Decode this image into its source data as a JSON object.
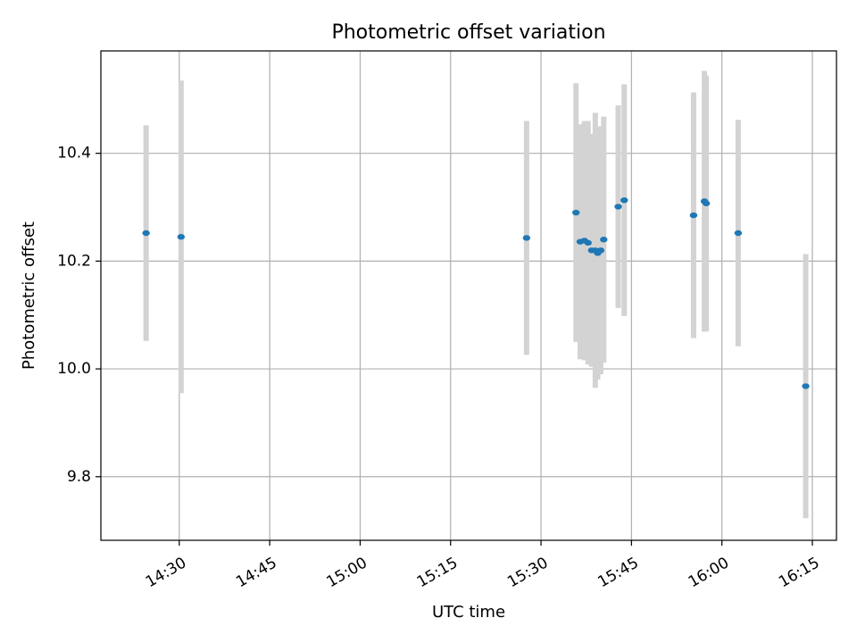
{
  "chart_data": {
    "type": "scatter",
    "title": "Photometric offset variation",
    "xlabel": "UTC time",
    "ylabel": "Photometric offset",
    "xlim": [
      "14:17",
      "16:19"
    ],
    "ylim": [
      9.682,
      10.59
    ],
    "x_ticks": [
      "14:30",
      "14:45",
      "15:00",
      "15:15",
      "15:30",
      "15:45",
      "16:00",
      "16:15"
    ],
    "y_ticks": [
      {
        "value": 9.8,
        "label": "9.8"
      },
      {
        "value": 10.0,
        "label": "10.0"
      },
      {
        "value": 10.2,
        "label": "10.2"
      },
      {
        "value": 10.4,
        "label": "10.4"
      }
    ],
    "grid": true,
    "colors": {
      "point": "#1f77b4",
      "errorbar": "#d3d3d3",
      "grid": "#b0b0b0"
    },
    "points": [
      {
        "time": "14:24:30",
        "value": 10.252,
        "error": 0.2
      },
      {
        "time": "14:30:18",
        "value": 10.245,
        "error": 0.29
      },
      {
        "time": "15:27:36",
        "value": 10.243,
        "error": 0.217
      },
      {
        "time": "15:35:48",
        "value": 10.29,
        "error": 0.24
      },
      {
        "time": "15:36:30",
        "value": 10.236,
        "error": 0.218
      },
      {
        "time": "15:37:12",
        "value": 10.238,
        "error": 0.222
      },
      {
        "time": "15:37:48",
        "value": 10.234,
        "error": 0.226
      },
      {
        "time": "15:38:24",
        "value": 10.22,
        "error": 0.216
      },
      {
        "time": "15:39:00",
        "value": 10.22,
        "error": 0.255
      },
      {
        "time": "15:39:24",
        "value": 10.215,
        "error": 0.235
      },
      {
        "time": "15:39:54",
        "value": 10.22,
        "error": 0.23
      },
      {
        "time": "15:40:24",
        "value": 10.24,
        "error": 0.228
      },
      {
        "time": "15:42:48",
        "value": 10.301,
        "error": 0.188
      },
      {
        "time": "15:43:48",
        "value": 10.313,
        "error": 0.215
      },
      {
        "time": "15:55:18",
        "value": 10.285,
        "error": 0.228
      },
      {
        "time": "15:57:06",
        "value": 10.311,
        "error": 0.242
      },
      {
        "time": "15:57:24",
        "value": 10.307,
        "error": 0.237
      },
      {
        "time": "16:02:42",
        "value": 10.252,
        "error": 0.21
      },
      {
        "time": "16:13:54",
        "value": 9.968,
        "error": 0.245
      }
    ]
  }
}
